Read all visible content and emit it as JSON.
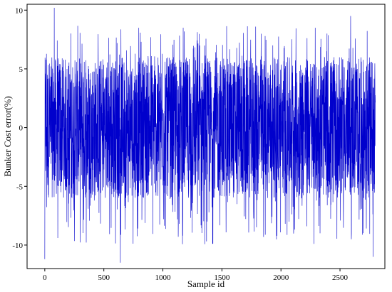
{
  "chart_data": {
    "type": "line",
    "title": "",
    "xlabel": "Sample id",
    "ylabel": "Bunker Cost error(%)",
    "xlim": [
      -150,
      2880
    ],
    "ylim": [
      -12,
      10.5
    ],
    "xticks": [
      0,
      500,
      1000,
      1500,
      2000,
      2500
    ],
    "yticks": [
      -10,
      -5,
      0,
      5,
      10
    ],
    "grid": false,
    "legend": "none",
    "series": [
      {
        "color": "#0000cc",
        "n_points": 2800,
        "x_start": 0,
        "x_end": 2799,
        "value_range": [
          -11.5,
          10.2
        ],
        "dense_core_range": [
          -6,
          6
        ],
        "note_values": [
          {
            "x": 0,
            "y": -11.2
          },
          {
            "x": 80,
            "y": 10.2
          },
          {
            "x": 640,
            "y": -11.5
          },
          {
            "x": 2590,
            "y": 9.5
          },
          {
            "x": 2780,
            "y": -11.0
          }
        ]
      }
    ]
  },
  "colors": {
    "line": "#0000cc",
    "axes": "#000000",
    "background": "#ffffff"
  }
}
